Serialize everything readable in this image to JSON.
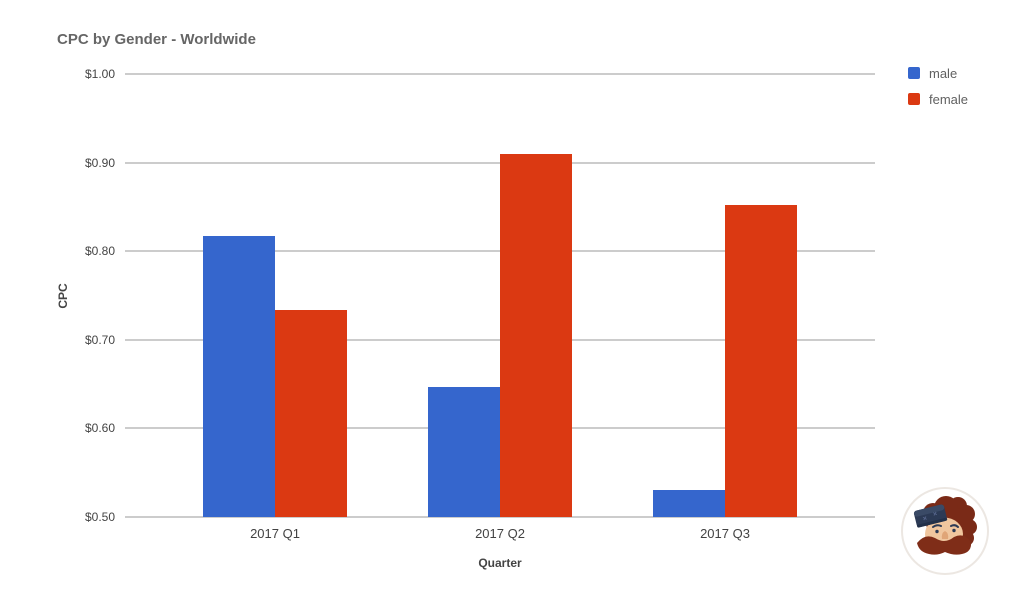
{
  "chart_data": {
    "type": "bar",
    "title": "CPC by Gender - Worldwide",
    "xlabel": "Quarter",
    "ylabel": "CPC",
    "categories": [
      "2017 Q1",
      "2017 Q2",
      "2017 Q3"
    ],
    "series": [
      {
        "name": "male",
        "color": "#3566cd",
        "values": [
          0.817,
          0.647,
          0.531
        ]
      },
      {
        "name": "female",
        "color": "#db3912",
        "values": [
          0.734,
          0.91,
          0.852
        ]
      }
    ],
    "ylim": [
      0.5,
      1.0
    ],
    "ytick_values": [
      1.0,
      0.9,
      0.8,
      0.7,
      0.6,
      0.5
    ],
    "ytick_labels": [
      "$1.00",
      "$0.90",
      "$0.80",
      "$0.70",
      "$0.60",
      "$0.50"
    ],
    "grid": true,
    "legend_position": "top-right"
  },
  "colors": {
    "background": "#ffffff",
    "gridline": "#cccccc",
    "axis_text": "#444444",
    "title_text": "#666666",
    "legend_text": "#616161"
  },
  "watermark": {
    "description": "circular badge with cartoon man mascot (navy cap, dark red hair and moustache)"
  }
}
